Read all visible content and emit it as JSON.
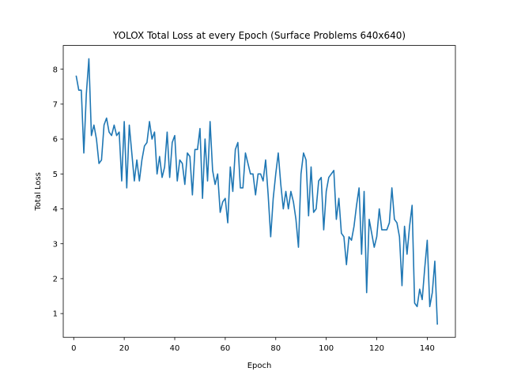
{
  "chart_data": {
    "type": "line",
    "title": "YOLOX Total Loss at every Epoch (Surface Problems 640x640)",
    "xlabel": "Epoch",
    "ylabel": "Total Loss",
    "xlim": [
      -4.15,
      151.15
    ],
    "ylim": [
      0.32,
      8.68
    ],
    "xticks": [
      0,
      20,
      40,
      60,
      80,
      100,
      120,
      140
    ],
    "yticks": [
      1,
      2,
      3,
      4,
      5,
      6,
      7,
      8
    ],
    "grid": false,
    "series": [
      {
        "name": "Total Loss",
        "color": "#1f77b4",
        "x": [
          1,
          2,
          3,
          4,
          5,
          6,
          7,
          8,
          9,
          10,
          11,
          12,
          13,
          14,
          15,
          16,
          17,
          18,
          19,
          20,
          21,
          22,
          23,
          24,
          25,
          26,
          27,
          28,
          29,
          30,
          31,
          32,
          33,
          34,
          35,
          36,
          37,
          38,
          39,
          40,
          41,
          42,
          43,
          44,
          45,
          46,
          47,
          48,
          49,
          50,
          51,
          52,
          53,
          54,
          55,
          56,
          57,
          58,
          59,
          60,
          61,
          62,
          63,
          64,
          65,
          66,
          67,
          68,
          69,
          70,
          71,
          72,
          73,
          74,
          75,
          76,
          77,
          78,
          79,
          80,
          81,
          82,
          83,
          84,
          85,
          86,
          87,
          88,
          89,
          90,
          91,
          92,
          93,
          94,
          95,
          96,
          97,
          98,
          99,
          100,
          101,
          102,
          103,
          104,
          105,
          106,
          107,
          108,
          109,
          110,
          111,
          112,
          113,
          114,
          115,
          116,
          117,
          118,
          119,
          120,
          121,
          122,
          123,
          124,
          125,
          126,
          127,
          128,
          129,
          130,
          131,
          132,
          133,
          134,
          135,
          136,
          137,
          138,
          139,
          140,
          141,
          142,
          143,
          144
        ],
        "values": [
          7.8,
          7.4,
          7.4,
          5.6,
          7.3,
          8.3,
          6.1,
          6.4,
          6.0,
          5.3,
          5.4,
          6.4,
          6.6,
          6.2,
          6.1,
          6.4,
          6.1,
          6.2,
          4.8,
          6.5,
          4.6,
          6.4,
          5.6,
          4.8,
          5.4,
          4.8,
          5.4,
          5.8,
          5.9,
          6.5,
          6.0,
          6.2,
          5.0,
          5.5,
          4.9,
          5.2,
          6.2,
          4.9,
          5.9,
          6.1,
          4.8,
          5.4,
          5.3,
          4.7,
          5.6,
          5.5,
          4.4,
          5.7,
          5.7,
          6.3,
          4.3,
          6.0,
          4.8,
          6.5,
          5.1,
          4.7,
          5.0,
          3.9,
          4.2,
          4.3,
          3.6,
          5.2,
          4.5,
          5.7,
          5.9,
          4.6,
          4.6,
          5.6,
          5.3,
          5.0,
          5.0,
          4.4,
          5.0,
          5.0,
          4.8,
          5.4,
          4.4,
          3.2,
          4.3,
          5.0,
          5.6,
          4.7,
          4.0,
          4.5,
          4.0,
          4.5,
          4.2,
          3.7,
          2.9,
          5.0,
          5.6,
          5.4,
          3.8,
          5.2,
          3.9,
          4.0,
          4.8,
          4.9,
          3.4,
          4.5,
          4.9,
          5.0,
          5.1,
          3.7,
          4.3,
          3.3,
          3.2,
          2.4,
          3.2,
          3.1,
          3.5,
          4.1,
          4.6,
          2.7,
          4.5,
          1.6,
          3.7,
          3.3,
          2.9,
          3.2,
          4.0,
          3.4,
          3.4,
          3.4,
          3.6,
          4.6,
          3.7,
          3.6,
          3.2,
          1.8,
          3.5,
          2.7,
          3.5,
          4.1,
          1.3,
          1.2,
          1.7,
          1.4,
          2.3,
          3.1,
          1.2,
          1.6,
          2.5,
          0.7
        ]
      }
    ]
  }
}
